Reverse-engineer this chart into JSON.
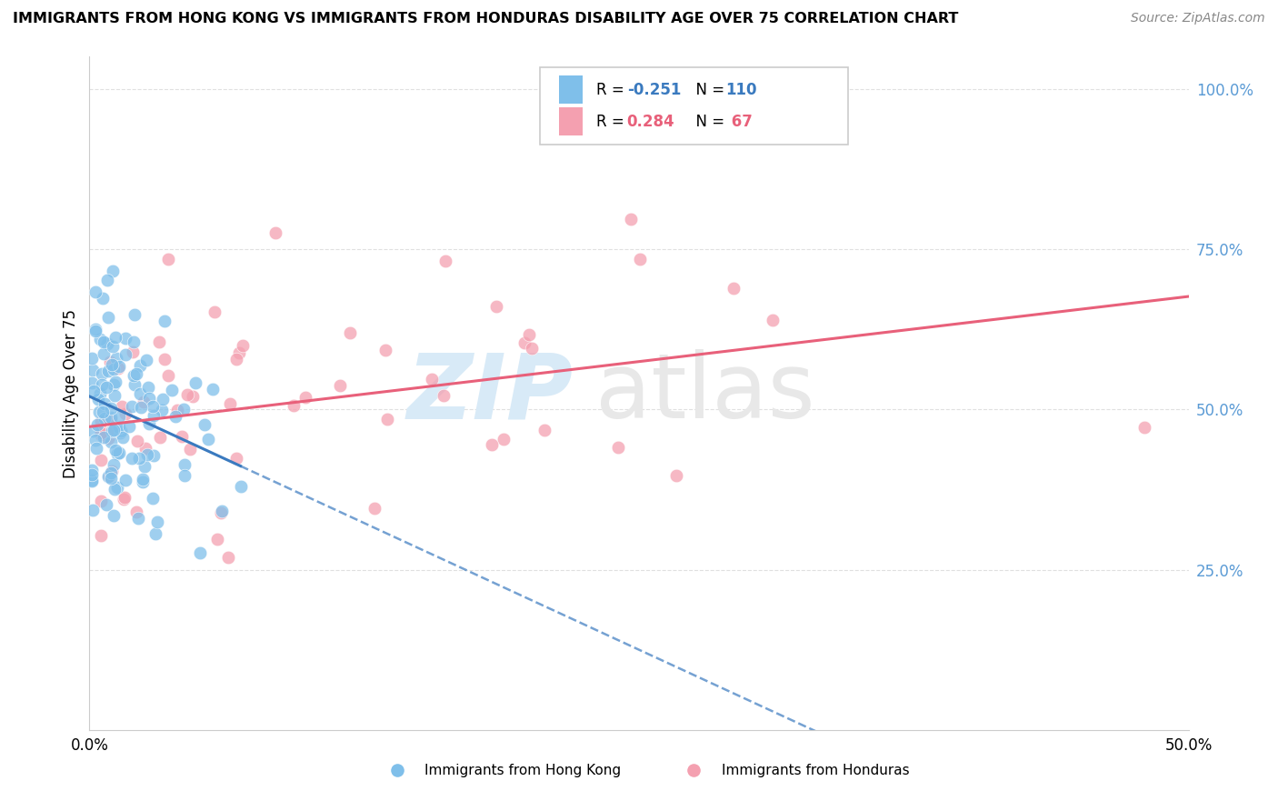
{
  "title": "IMMIGRANTS FROM HONG KONG VS IMMIGRANTS FROM HONDURAS DISABILITY AGE OVER 75 CORRELATION CHART",
  "source": "Source: ZipAtlas.com",
  "ylabel": "Disability Age Over 75",
  "legend_label1": "Immigrants from Hong Kong",
  "legend_label2": "Immigrants from Honduras",
  "r1": -0.251,
  "n1": 110,
  "r2": 0.284,
  "n2": 67,
  "color_hk": "#7fbfea",
  "color_hn": "#f4a0b0",
  "color_hk_line": "#3a7abf",
  "color_hn_line": "#e8607a",
  "color_ytick": "#5b9bd5",
  "xlim": [
    0.0,
    0.5
  ],
  "ylim": [
    0.0,
    1.05
  ],
  "ytick_vals": [
    0.25,
    0.5,
    0.75,
    1.0
  ],
  "ytick_labels": [
    "25.0%",
    "50.0%",
    "75.0%",
    "100.0%"
  ],
  "xtick_vals": [
    0.0,
    0.5
  ],
  "xtick_labels": [
    "0.0%",
    "50.0%"
  ],
  "grid_color": "#dddddd",
  "watermark_zip_color": "#d8eaf7",
  "watermark_atlas_color": "#e8e8e8"
}
